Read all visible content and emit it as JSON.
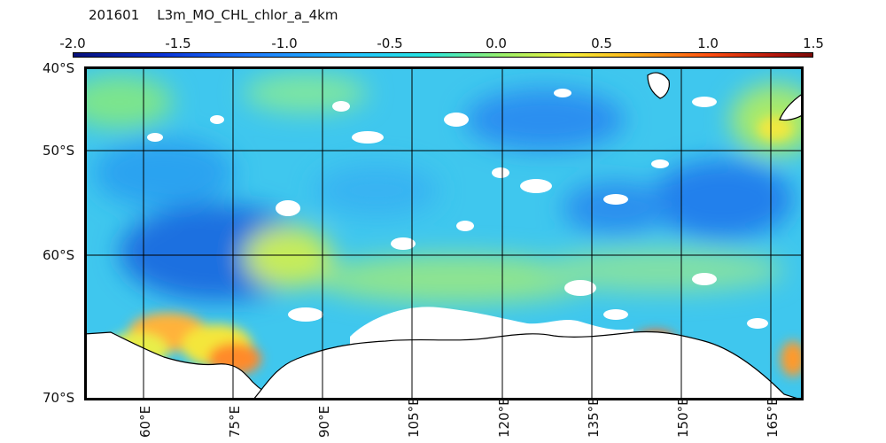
{
  "title": {
    "date": "201601",
    "product": "L3m_MO_CHL_chlor_a_4km"
  },
  "colorbar": {
    "labels": [
      "-2.0",
      "-1.5",
      "-1.0",
      "-0.5",
      "0.0",
      "0.5",
      "1.0",
      "1.5"
    ],
    "colors": [
      "#08107a",
      "#0a33d6",
      "#1f7bff",
      "#22c3ff",
      "#27e6e0",
      "#9af06a",
      "#f4f03a",
      "#ffb21a",
      "#ff4f12",
      "#7a0a08"
    ]
  },
  "latitude_labels": [
    "40°S",
    "50°S",
    "60°S",
    "70°S"
  ],
  "longitude_labels": [
    "60°E",
    "75°E",
    "90°E",
    "105°E",
    "120°E",
    "135°E",
    "150°E",
    "165°E"
  ],
  "colors": {
    "land": "#ffffff",
    "coast": "#000000",
    "grid": "#000000"
  }
}
